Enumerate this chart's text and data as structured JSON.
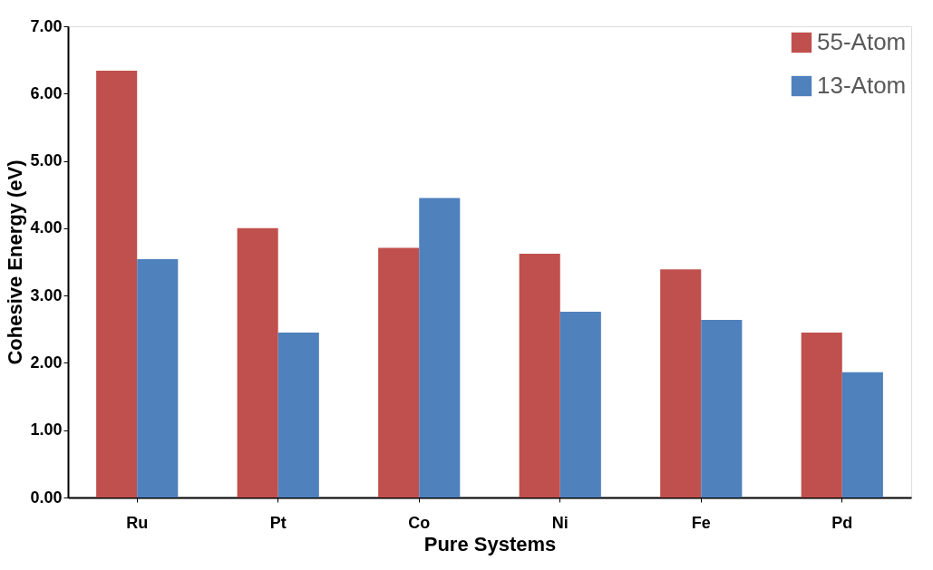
{
  "chart_data": {
    "type": "bar",
    "xlabel": "Pure Systems",
    "ylabel": "Cohesive Energy (eV)",
    "categories": [
      "Ru",
      "Pt",
      "Co",
      "Ni",
      "Fe",
      "Pd"
    ],
    "series": [
      {
        "name": "55-Atom",
        "color": "#c0504d",
        "values": [
          6.34,
          4.0,
          3.71,
          3.62,
          3.39,
          2.45
        ]
      },
      {
        "name": "13-Atom",
        "color": "#4f81bd",
        "values": [
          3.54,
          2.45,
          4.45,
          2.76,
          2.64,
          1.86
        ]
      }
    ],
    "ylim": [
      0,
      7
    ],
    "yticks": [
      {
        "value": 0,
        "label": "0.00"
      },
      {
        "value": 1,
        "label": "1.00"
      },
      {
        "value": 2,
        "label": "2.00"
      },
      {
        "value": 3,
        "label": "3.00"
      },
      {
        "value": 4,
        "label": "4.00"
      },
      {
        "value": 5,
        "label": "5.00"
      },
      {
        "value": 6,
        "label": "6.00"
      },
      {
        "value": 7,
        "label": "7.00"
      }
    ],
    "grid": false,
    "legend": "top right"
  }
}
